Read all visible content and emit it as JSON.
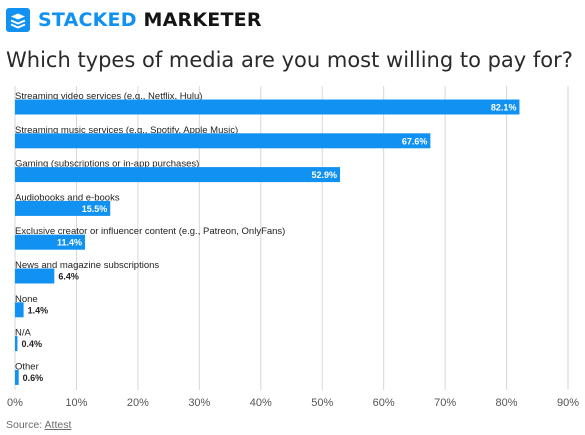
{
  "brand": {
    "name_part1": "STACKED",
    "name_part2": "MARKETER",
    "accent": "#1192f2"
  },
  "title": "Which types of media are you most willing to pay for?",
  "source": {
    "label": "Source:",
    "link": "Attest"
  },
  "chart_data": {
    "type": "bar",
    "orientation": "horizontal",
    "categories": [
      "Streaming video services (e.g., Netflix, Hulu)",
      "Streaming music services (e.g., Spotify, Apple Music)",
      "Gaming (subscriptions or in-app purchases)",
      "Audiobooks and e-books",
      "Exclusive creator or influencer content (e.g., Patreon, OnlyFans)",
      "News and magazine subscriptions",
      "None",
      "N/A",
      "Other"
    ],
    "values": [
      82.1,
      67.6,
      52.9,
      15.5,
      11.4,
      6.4,
      1.4,
      0.4,
      0.6
    ],
    "value_labels": [
      "82.1%",
      "67.6%",
      "52.9%",
      "15.5%",
      "11.4%",
      "6.4%",
      "1.4%",
      "0.4%",
      "0.6%"
    ],
    "xlim": [
      0,
      90
    ],
    "xticks": [
      "0%",
      "10%",
      "20%",
      "30%",
      "40%",
      "50%",
      "60%",
      "70%",
      "80%",
      "90%"
    ],
    "grid": true,
    "bar_color": "#1192f2"
  }
}
